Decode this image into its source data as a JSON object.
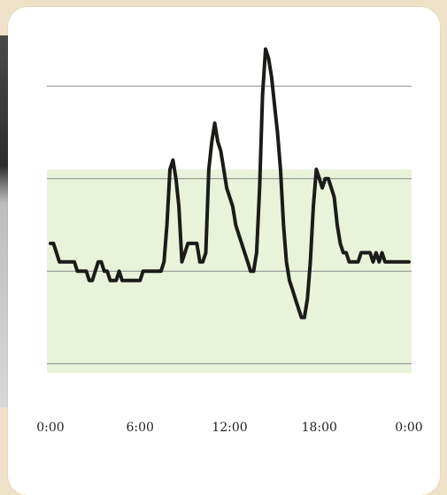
{
  "chart_data": {
    "type": "line",
    "title": "",
    "xlabel": "",
    "ylabel": "",
    "x_tick_labels": [
      "0:00",
      "6:00",
      "12:00",
      "18:00",
      "0:00"
    ],
    "x_tick_hours": [
      0,
      6,
      12,
      18,
      24
    ],
    "ylim": [
      0,
      4
    ],
    "gridlines_y": [
      0.5,
      1.5,
      2.5,
      3.5
    ],
    "target_band": [
      0.4,
      2.6
    ],
    "grid": true,
    "colors": {
      "line": "#1b1b17",
      "band": "#e9f3d9",
      "grid": "#8a8a8a"
    },
    "series": [
      {
        "x": [
          0.0,
          0.2,
          0.4,
          0.6,
          0.8,
          1.0,
          1.2,
          1.4,
          1.6,
          1.8,
          2.0,
          2.2,
          2.4,
          2.6,
          2.8,
          3.0,
          3.2,
          3.4,
          3.6,
          3.8,
          4.0,
          4.2,
          4.4,
          4.6,
          4.8,
          5.0,
          5.2,
          5.4,
          5.6,
          5.8,
          6.0,
          6.2,
          6.4,
          6.6,
          6.8,
          7.0,
          7.2,
          7.4,
          7.6,
          7.8,
          8.0,
          8.2,
          8.4,
          8.6,
          8.8,
          9.0,
          9.2,
          9.4,
          9.6,
          9.8,
          10.0,
          10.2,
          10.4,
          10.6,
          10.8,
          11.0,
          11.2,
          11.4,
          11.6,
          11.8,
          12.0,
          12.2,
          12.4,
          12.6,
          12.8,
          13.0,
          13.2,
          13.4,
          13.6,
          13.8,
          14.0,
          14.2,
          14.4,
          14.6,
          14.8,
          15.0,
          15.2,
          15.4,
          15.6,
          15.8,
          16.0,
          16.2,
          16.4,
          16.6,
          16.8,
          17.0,
          17.2,
          17.4,
          17.6,
          17.8,
          18.0,
          18.2,
          18.4,
          18.6,
          18.8,
          19.0,
          19.2,
          19.4,
          19.6,
          19.8,
          20.0,
          20.2,
          20.4,
          20.6,
          20.8,
          21.0,
          21.2,
          21.4,
          21.6,
          21.8,
          22.0,
          22.2,
          22.4,
          22.6,
          22.8,
          23.0,
          23.2,
          23.4,
          23.6,
          23.8,
          24.0
        ],
        "y": [
          1.8,
          1.8,
          1.7,
          1.6,
          1.6,
          1.6,
          1.6,
          1.6,
          1.6,
          1.5,
          1.5,
          1.5,
          1.5,
          1.4,
          1.4,
          1.5,
          1.6,
          1.6,
          1.5,
          1.5,
          1.4,
          1.4,
          1.4,
          1.5,
          1.4,
          1.4,
          1.4,
          1.4,
          1.4,
          1.4,
          1.4,
          1.5,
          1.5,
          1.5,
          1.5,
          1.5,
          1.5,
          1.5,
          1.6,
          2.0,
          2.6,
          2.7,
          2.5,
          2.2,
          1.6,
          1.7,
          1.8,
          1.8,
          1.8,
          1.8,
          1.6,
          1.6,
          1.7,
          2.6,
          2.9,
          3.1,
          2.9,
          2.8,
          2.6,
          2.4,
          2.3,
          2.2,
          2.0,
          1.9,
          1.8,
          1.7,
          1.6,
          1.5,
          1.5,
          1.7,
          2.4,
          3.4,
          3.9,
          3.8,
          3.6,
          3.3,
          3.0,
          2.6,
          2.0,
          1.6,
          1.4,
          1.3,
          1.2,
          1.1,
          1.0,
          1.0,
          1.2,
          1.6,
          2.2,
          2.6,
          2.5,
          2.4,
          2.5,
          2.5,
          2.4,
          2.3,
          2.0,
          1.8,
          1.7,
          1.7,
          1.6,
          1.6,
          1.6,
          1.6,
          1.7,
          1.7,
          1.7,
          1.7,
          1.6,
          1.7,
          1.6,
          1.7,
          1.6,
          1.6,
          1.6,
          1.6,
          1.6,
          1.6,
          1.6,
          1.6,
          1.6
        ]
      }
    ]
  }
}
